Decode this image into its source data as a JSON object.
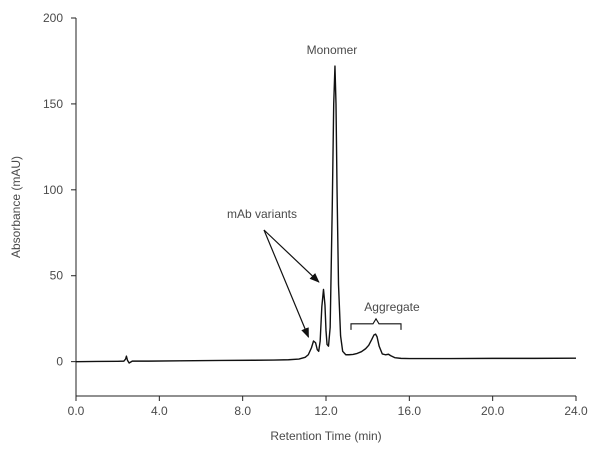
{
  "chart_data": {
    "type": "line",
    "title": "",
    "xlabel": "Retention Time (min)",
    "ylabel": "Absorbance (mAU)",
    "xlim": [
      0,
      24
    ],
    "ylim": [
      -20,
      200
    ],
    "grid": false,
    "xticks": [
      {
        "value": 0,
        "label": "0.0"
      },
      {
        "value": 4,
        "label": "4.0"
      },
      {
        "value": 8,
        "label": "8.0"
      },
      {
        "value": 12,
        "label": "12.0"
      },
      {
        "value": 16,
        "label": "16.0"
      },
      {
        "value": 20,
        "label": "20.0"
      },
      {
        "value": 24,
        "label": "24.0"
      }
    ],
    "yticks": [
      {
        "value": 0,
        "label": "0"
      },
      {
        "value": 50,
        "label": "50"
      },
      {
        "value": 100,
        "label": "100"
      },
      {
        "value": 150,
        "label": "150"
      },
      {
        "value": 200,
        "label": "200"
      }
    ],
    "series": [
      {
        "x": [
          0.0,
          1.0,
          2.0,
          2.3,
          2.38,
          2.42,
          2.47,
          2.55,
          2.7,
          3.5,
          5.0,
          7.0,
          8.5,
          9.5,
          10.2,
          10.7,
          11.0,
          11.15,
          11.3,
          11.4,
          11.5,
          11.58,
          11.65,
          11.72,
          11.8,
          11.88,
          11.95,
          12.0,
          12.05,
          12.12,
          12.2,
          12.3,
          12.37,
          12.43,
          12.48,
          12.53,
          12.6,
          12.7,
          12.8,
          12.95,
          13.1,
          13.3,
          13.5,
          13.7,
          13.9,
          14.05,
          14.2,
          14.3,
          14.38,
          14.45,
          14.55,
          14.7,
          14.85,
          15.0,
          15.1,
          15.3,
          15.6,
          16.0,
          17.0,
          18.0,
          20.0,
          22.0,
          24.0
        ],
        "y": [
          0.0,
          0.1,
          0.2,
          0.3,
          1.5,
          3.2,
          0.8,
          -0.8,
          0.3,
          0.3,
          0.5,
          0.7,
          0.8,
          0.9,
          1.1,
          1.5,
          2.5,
          4.0,
          8.0,
          12.0,
          11.0,
          7.0,
          6.0,
          12.0,
          32.0,
          42.0,
          33.0,
          18.0,
          10.0,
          9.0,
          20.0,
          90.0,
          150.0,
          172.0,
          150.0,
          100.0,
          45.0,
          15.0,
          6.0,
          4.0,
          4.0,
          4.2,
          4.8,
          5.8,
          7.5,
          9.5,
          13.0,
          15.5,
          16.0,
          14.5,
          9.0,
          4.5,
          4.0,
          4.3,
          3.5,
          2.3,
          1.9,
          1.8,
          1.8,
          1.8,
          1.9,
          1.9,
          2.0
        ]
      }
    ],
    "annotations": [
      {
        "label": "Monomer",
        "anchor_x": 12.43,
        "anchor_y": 172
      },
      {
        "label": "mAb variants",
        "arrows_to": [
          [
            11.35,
            12
          ],
          [
            11.85,
            44
          ]
        ]
      },
      {
        "label": "Aggregate",
        "span": [
          13.2,
          15.6
        ],
        "bracket_y": 22
      }
    ]
  }
}
